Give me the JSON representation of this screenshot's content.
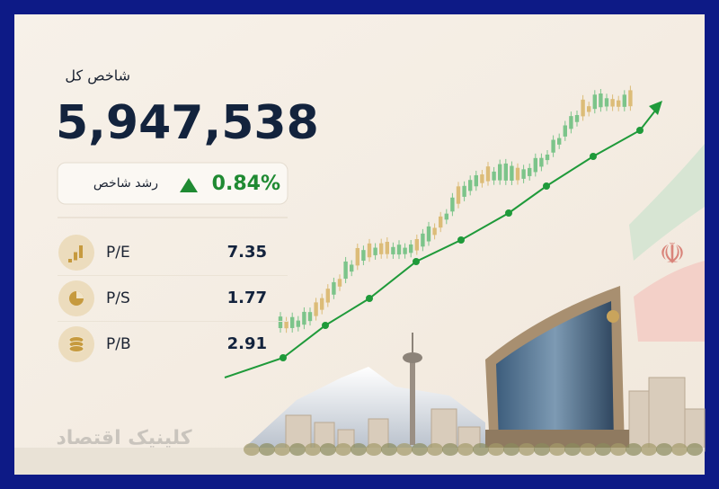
{
  "header": {
    "title": "شاخص کل",
    "value": "5,947,538"
  },
  "growth": {
    "label": "رشد شاخص",
    "value": "0.84%"
  },
  "ratios": [
    {
      "label": "P/E",
      "value": "7.35"
    },
    {
      "label": "P/S",
      "value": "1.77"
    },
    {
      "label": "P/B",
      "value": "2.91"
    }
  ],
  "watermark": "کلینیک اقتصاد"
}
